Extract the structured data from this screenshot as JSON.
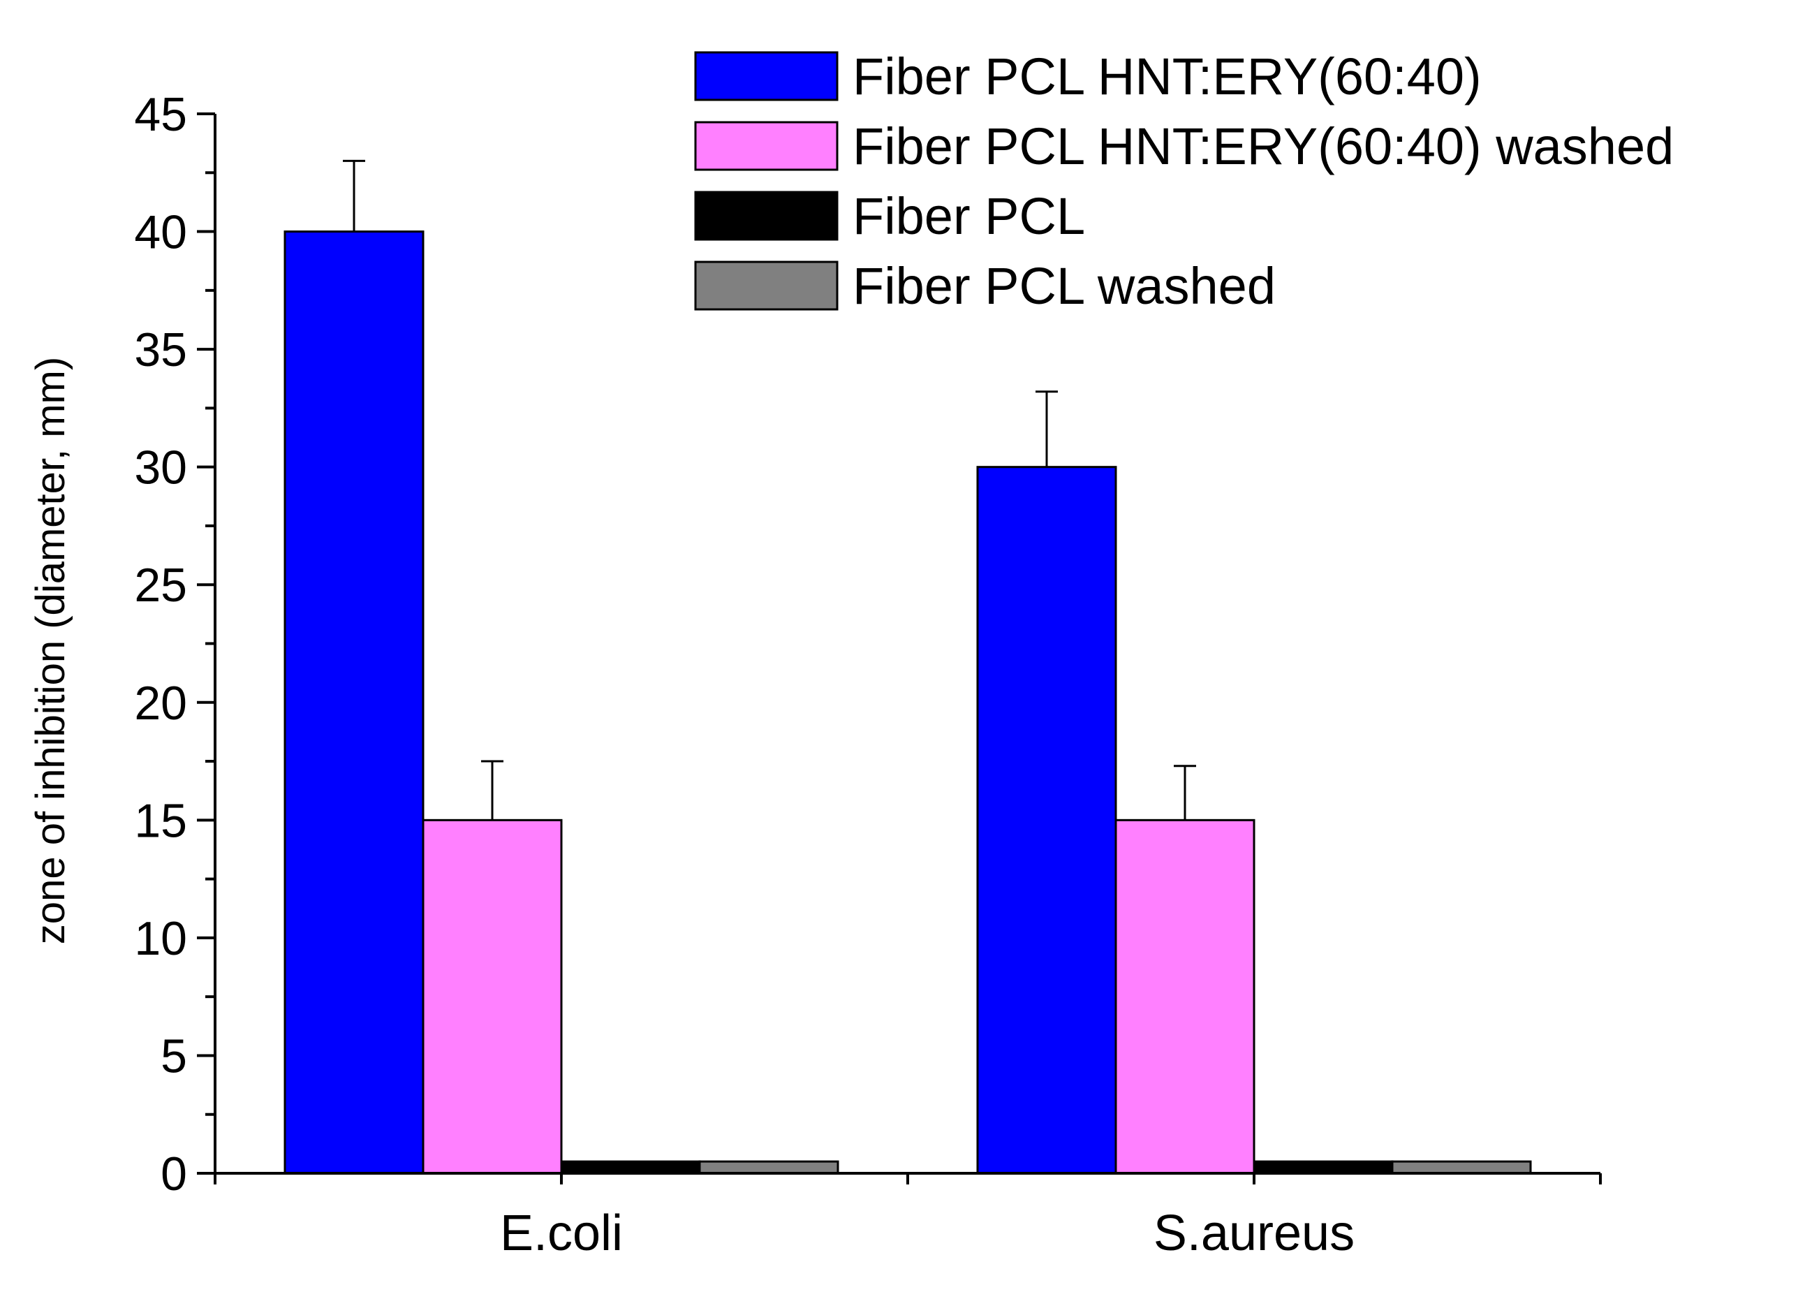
{
  "chart_data": {
    "type": "bar",
    "title": "",
    "xlabel": "",
    "ylabel": "zone of inhibition (diameter, mm)",
    "categories": [
      "E.coli",
      "S.aureus"
    ],
    "ylim": [
      0,
      45
    ],
    "yticks": [
      "0",
      "5",
      "10",
      "15",
      "20",
      "25",
      "30",
      "35",
      "40",
      "45"
    ],
    "grid": false,
    "legend_position": "top-right",
    "series": [
      {
        "name": "Fiber PCL HNT:ERY(60:40)",
        "color": "#0000ff",
        "values": [
          40,
          30
        ],
        "errors": [
          3,
          3.2
        ]
      },
      {
        "name": "Fiber PCL HNT:ERY(60:40) washed",
        "color": "#ff80ff",
        "values": [
          15,
          15
        ],
        "errors": [
          2.5,
          2.3
        ]
      },
      {
        "name": "Fiber PCL",
        "color": "#000000",
        "values": [
          0.5,
          0.5
        ],
        "errors": [
          0,
          0
        ]
      },
      {
        "name": "Fiber PCL washed",
        "color": "#808080",
        "values": [
          0.5,
          0.5
        ],
        "errors": [
          0,
          0
        ]
      }
    ]
  }
}
